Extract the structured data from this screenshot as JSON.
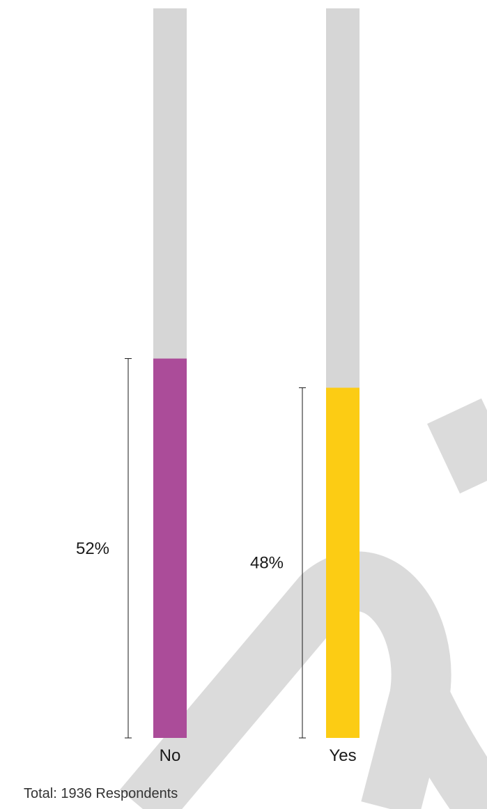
{
  "chart_data": {
    "type": "bar",
    "categories": [
      "No",
      "Yes"
    ],
    "values": [
      52,
      48
    ],
    "value_labels": [
      "52%",
      "48%"
    ],
    "ylim": [
      0,
      100
    ],
    "colors": [
      "#a84294",
      "#ffcb05"
    ],
    "track_color": "#d6d6d6",
    "grid": false
  },
  "footer": {
    "total_text": "Total: 1936 Respondents"
  },
  "watermark": {
    "color": "#d9d9d9"
  }
}
